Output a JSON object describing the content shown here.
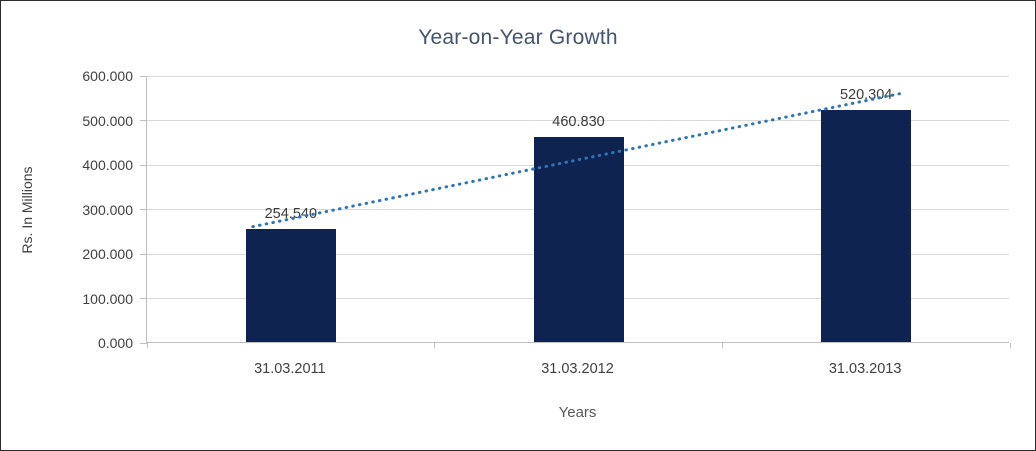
{
  "chart_data": {
    "type": "bar",
    "title": "Year-on-Year Growth",
    "xlabel": "Years",
    "ylabel": "Rs. In Millions",
    "categories": [
      "31.03.2011",
      "31.03.2012",
      "31.03.2013"
    ],
    "values": [
      254.54,
      460.83,
      520.304
    ],
    "value_labels": [
      "254.540",
      "460.830",
      "520.304"
    ],
    "y_ticks": [
      0,
      100,
      200,
      300,
      400,
      500,
      600
    ],
    "y_tick_labels": [
      "0.000",
      "100.000",
      "200.000",
      "300.000",
      "400.000",
      "500.000",
      "600.000"
    ],
    "ylim": [
      0,
      600
    ],
    "grid": true,
    "legend": "none",
    "trendline": "linear",
    "colors": {
      "bar": "#0f2350",
      "trendline": "#2e75b6",
      "title": "#44546a",
      "text": "#404040",
      "gridline": "#d9d9d9",
      "axis": "#bfbfbf"
    }
  }
}
